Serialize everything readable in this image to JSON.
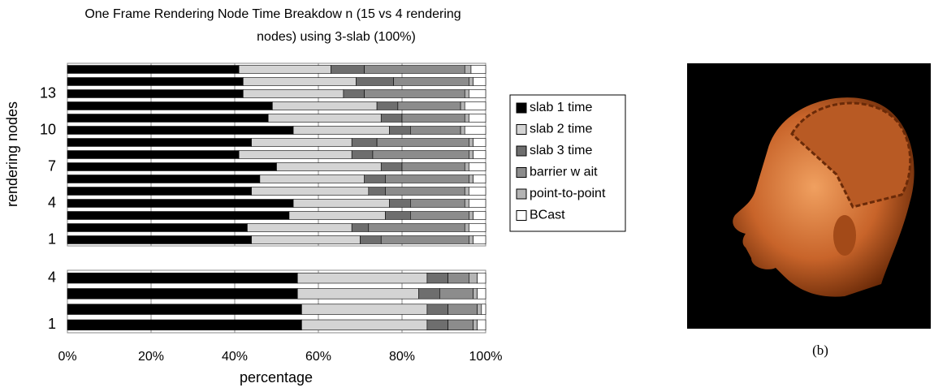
{
  "chart_data": [
    {
      "type": "stacked-barh",
      "title": [
        "One Frame Rendering Node Time Breakdow n (15 vs 4 rendering",
        "nodes) using 3-slab  (100%)"
      ],
      "ylabel": "rendering nodes",
      "categories": [
        "1",
        null,
        null,
        "4",
        null,
        null,
        "7",
        null,
        null,
        "10",
        null,
        null,
        "13",
        null,
        null
      ],
      "xlim": [
        0,
        100
      ],
      "grid": true,
      "legend": "right",
      "series": [
        {
          "name": "slab 1 time",
          "color": "#000000",
          "values": [
            44,
            43,
            53,
            54,
            44,
            46,
            50,
            41,
            44,
            54,
            48,
            49,
            42,
            42,
            41
          ]
        },
        {
          "name": "slab 2 time",
          "color": "#d4d4d4",
          "values": [
            26,
            25,
            23,
            23,
            28,
            25,
            25,
            27,
            24,
            23,
            27,
            25,
            24,
            27,
            22
          ]
        },
        {
          "name": "slab 3 time",
          "color": "#6e6e6e",
          "values": [
            5,
            4,
            6,
            5,
            4,
            5,
            5,
            5,
            6,
            5,
            5,
            5,
            5,
            9,
            8
          ]
        },
        {
          "name": "barrier w ait",
          "color": "#8c8c8c",
          "values": [
            21,
            23,
            14,
            13,
            19,
            20,
            15,
            23,
            22,
            12,
            15,
            15,
            24,
            18,
            24
          ]
        },
        {
          "name": "point-to-point",
          "color": "#b4b4b4",
          "values": [
            1,
            1,
            1,
            1,
            1,
            1,
            1,
            1,
            1,
            1,
            1,
            1,
            1,
            1,
            1.5
          ]
        },
        {
          "name": "BCast",
          "color": "#ffffff",
          "values": [
            3,
            4,
            3,
            4,
            4,
            3,
            4,
            3,
            3,
            5,
            4,
            5,
            4,
            3,
            3.5
          ]
        }
      ]
    },
    {
      "type": "stacked-barh",
      "xlabel": "percentage",
      "categories": [
        "1",
        null,
        null,
        "4"
      ],
      "xlim": [
        0,
        100
      ],
      "xticks": [
        {
          "value": 0,
          "label": "0%"
        },
        {
          "value": 20,
          "label": "20%"
        },
        {
          "value": 40,
          "label": "40%"
        },
        {
          "value": 60,
          "label": "60%"
        },
        {
          "value": 80,
          "label": "80%"
        },
        {
          "value": 100,
          "label": "100%"
        }
      ],
      "grid": true,
      "series": [
        {
          "name": "slab 1 time",
          "color": "#000000",
          "values": [
            56,
            56,
            55,
            55
          ]
        },
        {
          "name": "slab 2 time",
          "color": "#d4d4d4",
          "values": [
            30,
            30,
            29,
            31
          ]
        },
        {
          "name": "slab 3 time",
          "color": "#6e6e6e",
          "values": [
            5,
            5,
            5,
            5
          ]
        },
        {
          "name": "barrier w ait",
          "color": "#8c8c8c",
          "values": [
            6,
            7,
            8,
            5
          ]
        },
        {
          "name": "point-to-point",
          "color": "#b4b4b4",
          "values": [
            1,
            1,
            1,
            2
          ]
        },
        {
          "name": "BCast",
          "color": "#ffffff",
          "values": [
            2,
            1,
            2,
            2
          ]
        }
      ]
    }
  ],
  "figure": {
    "caption": "(b)"
  }
}
